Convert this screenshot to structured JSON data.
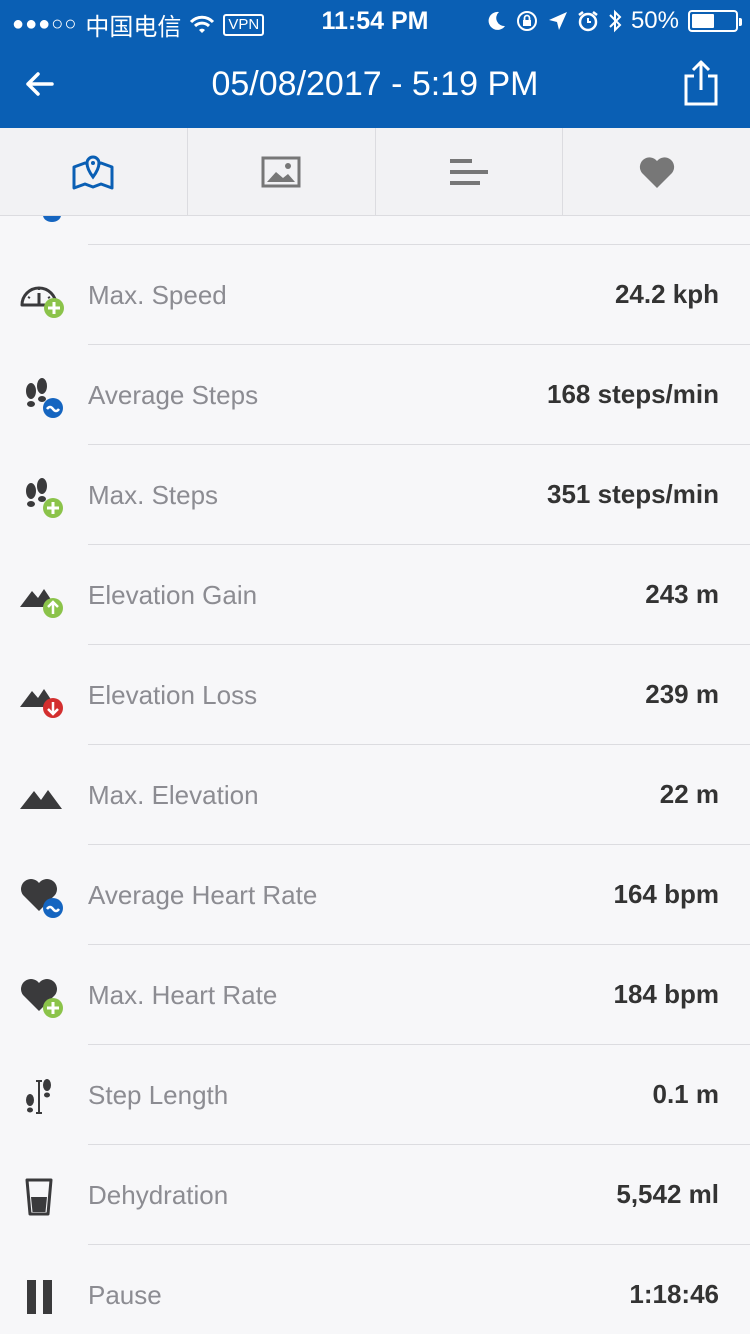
{
  "status_bar": {
    "signal_dots": "●●●○○",
    "carrier": "中国电信",
    "vpn": "VPN",
    "time": "11:54 PM",
    "battery": "50%"
  },
  "header": {
    "title": "05/08/2017 - 5:19 PM"
  },
  "tabs": [
    {
      "icon": "map-icon",
      "active": true
    },
    {
      "icon": "photo-icon",
      "active": false
    },
    {
      "icon": "stats-icon",
      "active": false
    },
    {
      "icon": "heart-icon",
      "active": false
    }
  ],
  "colors": {
    "brand": "#0a5fb4",
    "plus_badge": "#8bc34a",
    "avg_badge": "#1565c0",
    "down_badge": "#d32f2f",
    "icon_gray": "#3a3a3c"
  },
  "stats": [
    {
      "label": "Max. Speed",
      "value": "24.2 kph",
      "icon": "speedometer-plus-icon"
    },
    {
      "label": "Average Steps",
      "value": "168 steps/min",
      "icon": "footsteps-average-icon"
    },
    {
      "label": "Max. Steps",
      "value": "351 steps/min",
      "icon": "footsteps-plus-icon"
    },
    {
      "label": "Elevation Gain",
      "value": "243 m",
      "icon": "mountain-up-icon"
    },
    {
      "label": "Elevation Loss",
      "value": "239 m",
      "icon": "mountain-down-icon"
    },
    {
      "label": "Max. Elevation",
      "value": "22 m",
      "icon": "mountain-icon"
    },
    {
      "label": "Average Heart Rate",
      "value": "164 bpm",
      "icon": "heart-average-icon"
    },
    {
      "label": "Max. Heart Rate",
      "value": "184 bpm",
      "icon": "heart-plus-icon"
    },
    {
      "label": "Step Length",
      "value": "0.1 m",
      "icon": "step-length-icon"
    },
    {
      "label": "Dehydration",
      "value": "5,542 ml",
      "icon": "glass-icon"
    },
    {
      "label": "Pause",
      "value": "1:18:46",
      "icon": "pause-icon"
    }
  ]
}
